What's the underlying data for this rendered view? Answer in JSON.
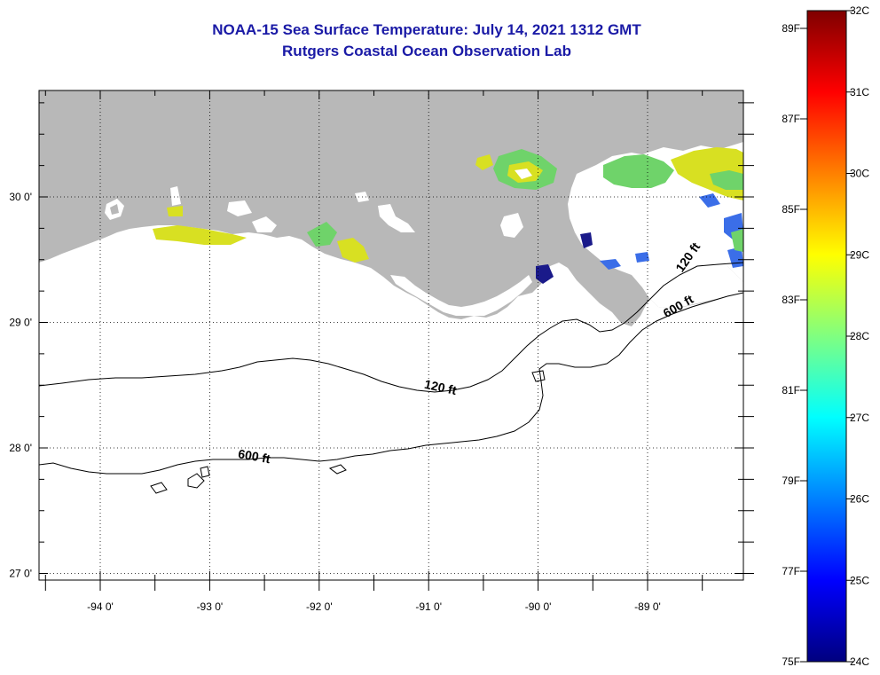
{
  "title": "NOAA-15 Sea Surface Temperature:  July 14, 2021 1312 GMT",
  "subtitle": "Rutgers Coastal Ocean Observation Lab",
  "lat_labels": [
    {
      "value": 30,
      "text": "30 0'"
    },
    {
      "value": 29,
      "text": "29 0'"
    },
    {
      "value": 28,
      "text": "28 0'"
    },
    {
      "value": 27,
      "text": "27 0'"
    }
  ],
  "lon_labels": [
    {
      "value": -94,
      "text": "-94 0'"
    },
    {
      "value": -93,
      "text": "-93 0'"
    },
    {
      "value": -92,
      "text": "-92 0'"
    },
    {
      "value": -91,
      "text": "-91 0'"
    },
    {
      "value": -90,
      "text": "-90 0'"
    },
    {
      "value": -89,
      "text": "-89 0'"
    }
  ],
  "isobath_labels": [
    {
      "text": "120 ft",
      "lon": -90.9,
      "lat": 28.45,
      "rotate": 12
    },
    {
      "text": "600 ft",
      "lon": -92.6,
      "lat": 27.9,
      "rotate": 10
    },
    {
      "text": "120 ft",
      "lon": -88.6,
      "lat": 29.5,
      "rotate": -55
    },
    {
      "text": "600 ft",
      "lon": -88.7,
      "lat": 29.1,
      "rotate": -30
    }
  ],
  "colorbar": {
    "celsius_labels": [
      "32C",
      "31C",
      "30C",
      "29C",
      "28C",
      "27C",
      "26C",
      "25C",
      "24C"
    ],
    "fahrenheit_labels": [
      "89F",
      "87F",
      "85F",
      "83F",
      "81F",
      "79F",
      "77F",
      "75F"
    ],
    "colors": [
      "#00007f",
      "#0000ff",
      "#0080ff",
      "#00ffff",
      "#80ff80",
      "#ffff00",
      "#ff8000",
      "#ff0000",
      "#7f0000"
    ]
  },
  "map_colors": {
    "land": "#b8b8b8",
    "ocean": "#ffffff",
    "warm_water": "#d8e022",
    "mid_water": "#6fd36a"
  }
}
